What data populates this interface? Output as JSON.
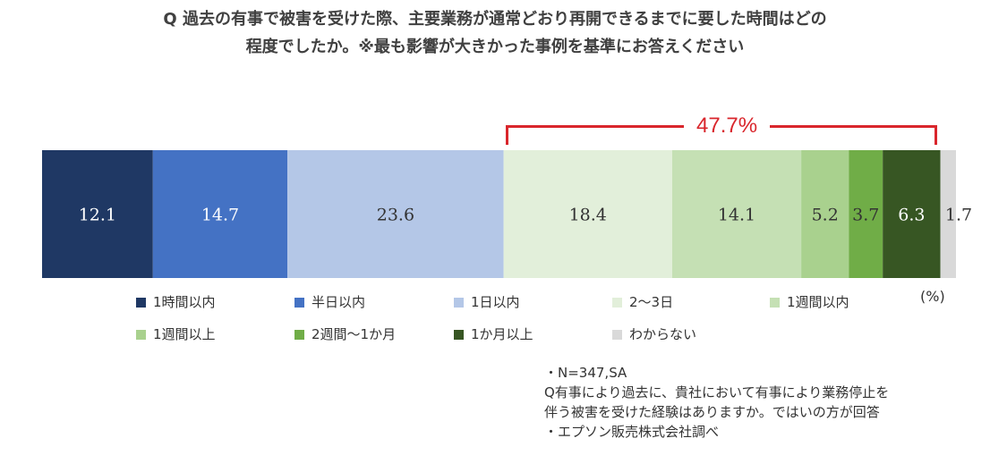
{
  "title": {
    "line1": "Q 過去の有事で被害を受けた際、主要業務が通常どおり再開できるまでに要した時間はどの",
    "line2": "程度でしたか。※最も影響が大きかった事例を基準にお答えください"
  },
  "bracket_label": "47.7%",
  "unit_label": "(%)",
  "notes": [
    "・N=347,SA",
    "Q有事により過去に、貴社において有事により業務停止を",
    "伴う被害を受けた経験はありますか。ではいの方が回答",
    "・エプソン販売株式会社調べ"
  ],
  "chart_data": {
    "type": "bar",
    "orientation": "horizontal-stacked-100",
    "title": "Q 過去の有事で被害を受けた際、主要業務が通常どおり再開できるまでに要した時間はどの程度でしたか。※最も影響が大きかった事例を基準にお答えください",
    "unit": "(%)",
    "xlim": [
      0,
      100
    ],
    "grid": false,
    "legend_position": "bottom",
    "series": [
      {
        "name": "1時間以内",
        "value": 12.1,
        "label": "12.1",
        "color": "#1f3864",
        "label_color": "#ffffff"
      },
      {
        "name": "半日以内",
        "value": 14.7,
        "label": "14.7",
        "color": "#4472c4",
        "label_color": "#ffffff"
      },
      {
        "name": "1日以内",
        "value": 23.6,
        "label": "23.6",
        "color": "#b4c7e7",
        "label_color": "#333333"
      },
      {
        "name": "2～3日",
        "value": 18.4,
        "label": "18.4",
        "color": "#e2efda",
        "label_color": "#333333"
      },
      {
        "name": "1週間以内",
        "value": 14.1,
        "label": "14.1",
        "color": "#c5e0b4",
        "label_color": "#333333"
      },
      {
        "name": "1週間以上",
        "value": 5.2,
        "label": "5.2",
        "color": "#a9d18e",
        "label_color": "#333333"
      },
      {
        "name": "2週間～1か月",
        "value": 3.7,
        "label": "3.7",
        "color": "#70ad47",
        "label_color": "#333333"
      },
      {
        "name": "1か月以上",
        "value": 6.3,
        "label": "6.3",
        "color": "#375623",
        "label_color": "#ffffff"
      },
      {
        "name": "わからない",
        "value": 1.7,
        "label": "1.7",
        "color": "#d9d9d9",
        "label_color": "#333333"
      }
    ],
    "highlight": {
      "label": "47.7%",
      "from_series": "2～3日",
      "to_series": "1か月以上"
    }
  }
}
